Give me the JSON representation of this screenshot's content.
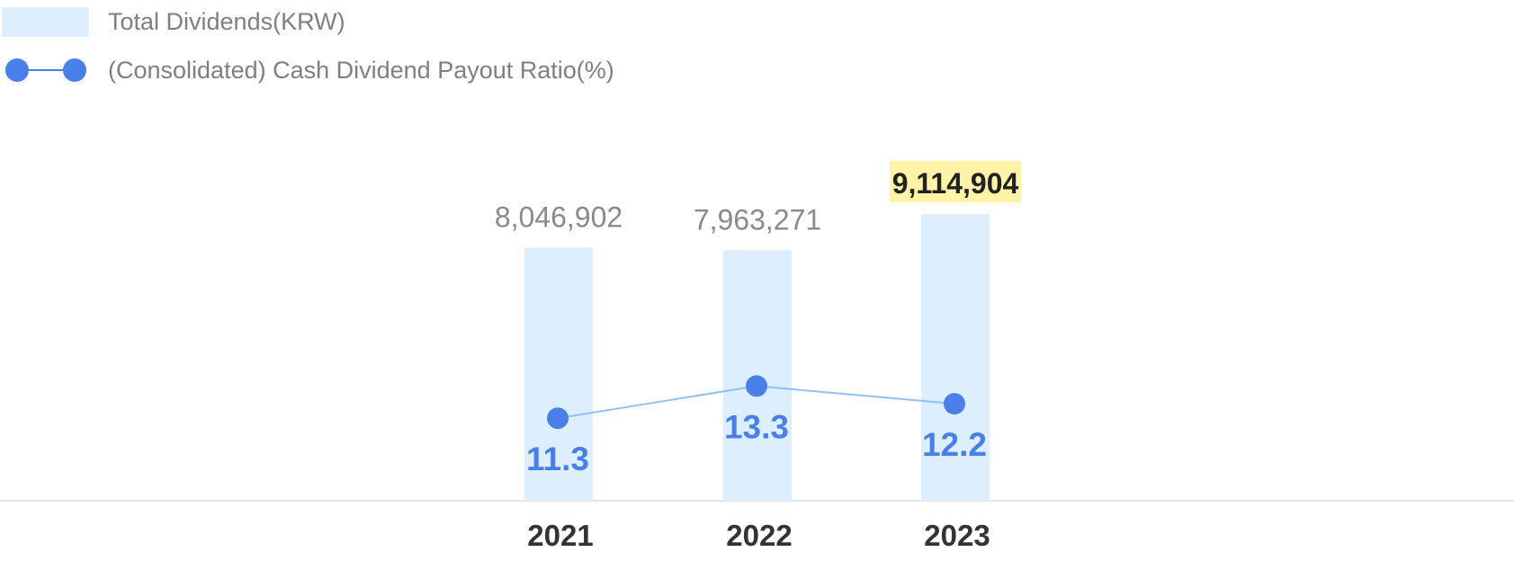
{
  "chart_data": {
    "type": "bar",
    "categories": [
      "2021",
      "2022",
      "2023"
    ],
    "series": [
      {
        "name": "Total Dividends(KRW)",
        "type": "bar",
        "values": [
          8046902,
          7963271,
          9114904
        ],
        "value_labels": [
          "8,046,902",
          "7,963,271",
          "9,114,904"
        ],
        "highlight_index": 2
      },
      {
        "name": "(Consolidated) Cash Dividend Payout Ratio(%)",
        "type": "line",
        "values": [
          11.3,
          13.3,
          12.2
        ],
        "value_labels": [
          "11.3",
          "13.3",
          "12.2"
        ]
      }
    ],
    "legend_position": "top-left",
    "grid": false,
    "colors": {
      "bar": "#ddeefe",
      "line": "#8ec2f4",
      "marker": "#4a7fe9",
      "ratio_label": "#4a7fe9",
      "highlight_bg": "#fff3a8",
      "axis": "#e6e6e6"
    }
  }
}
